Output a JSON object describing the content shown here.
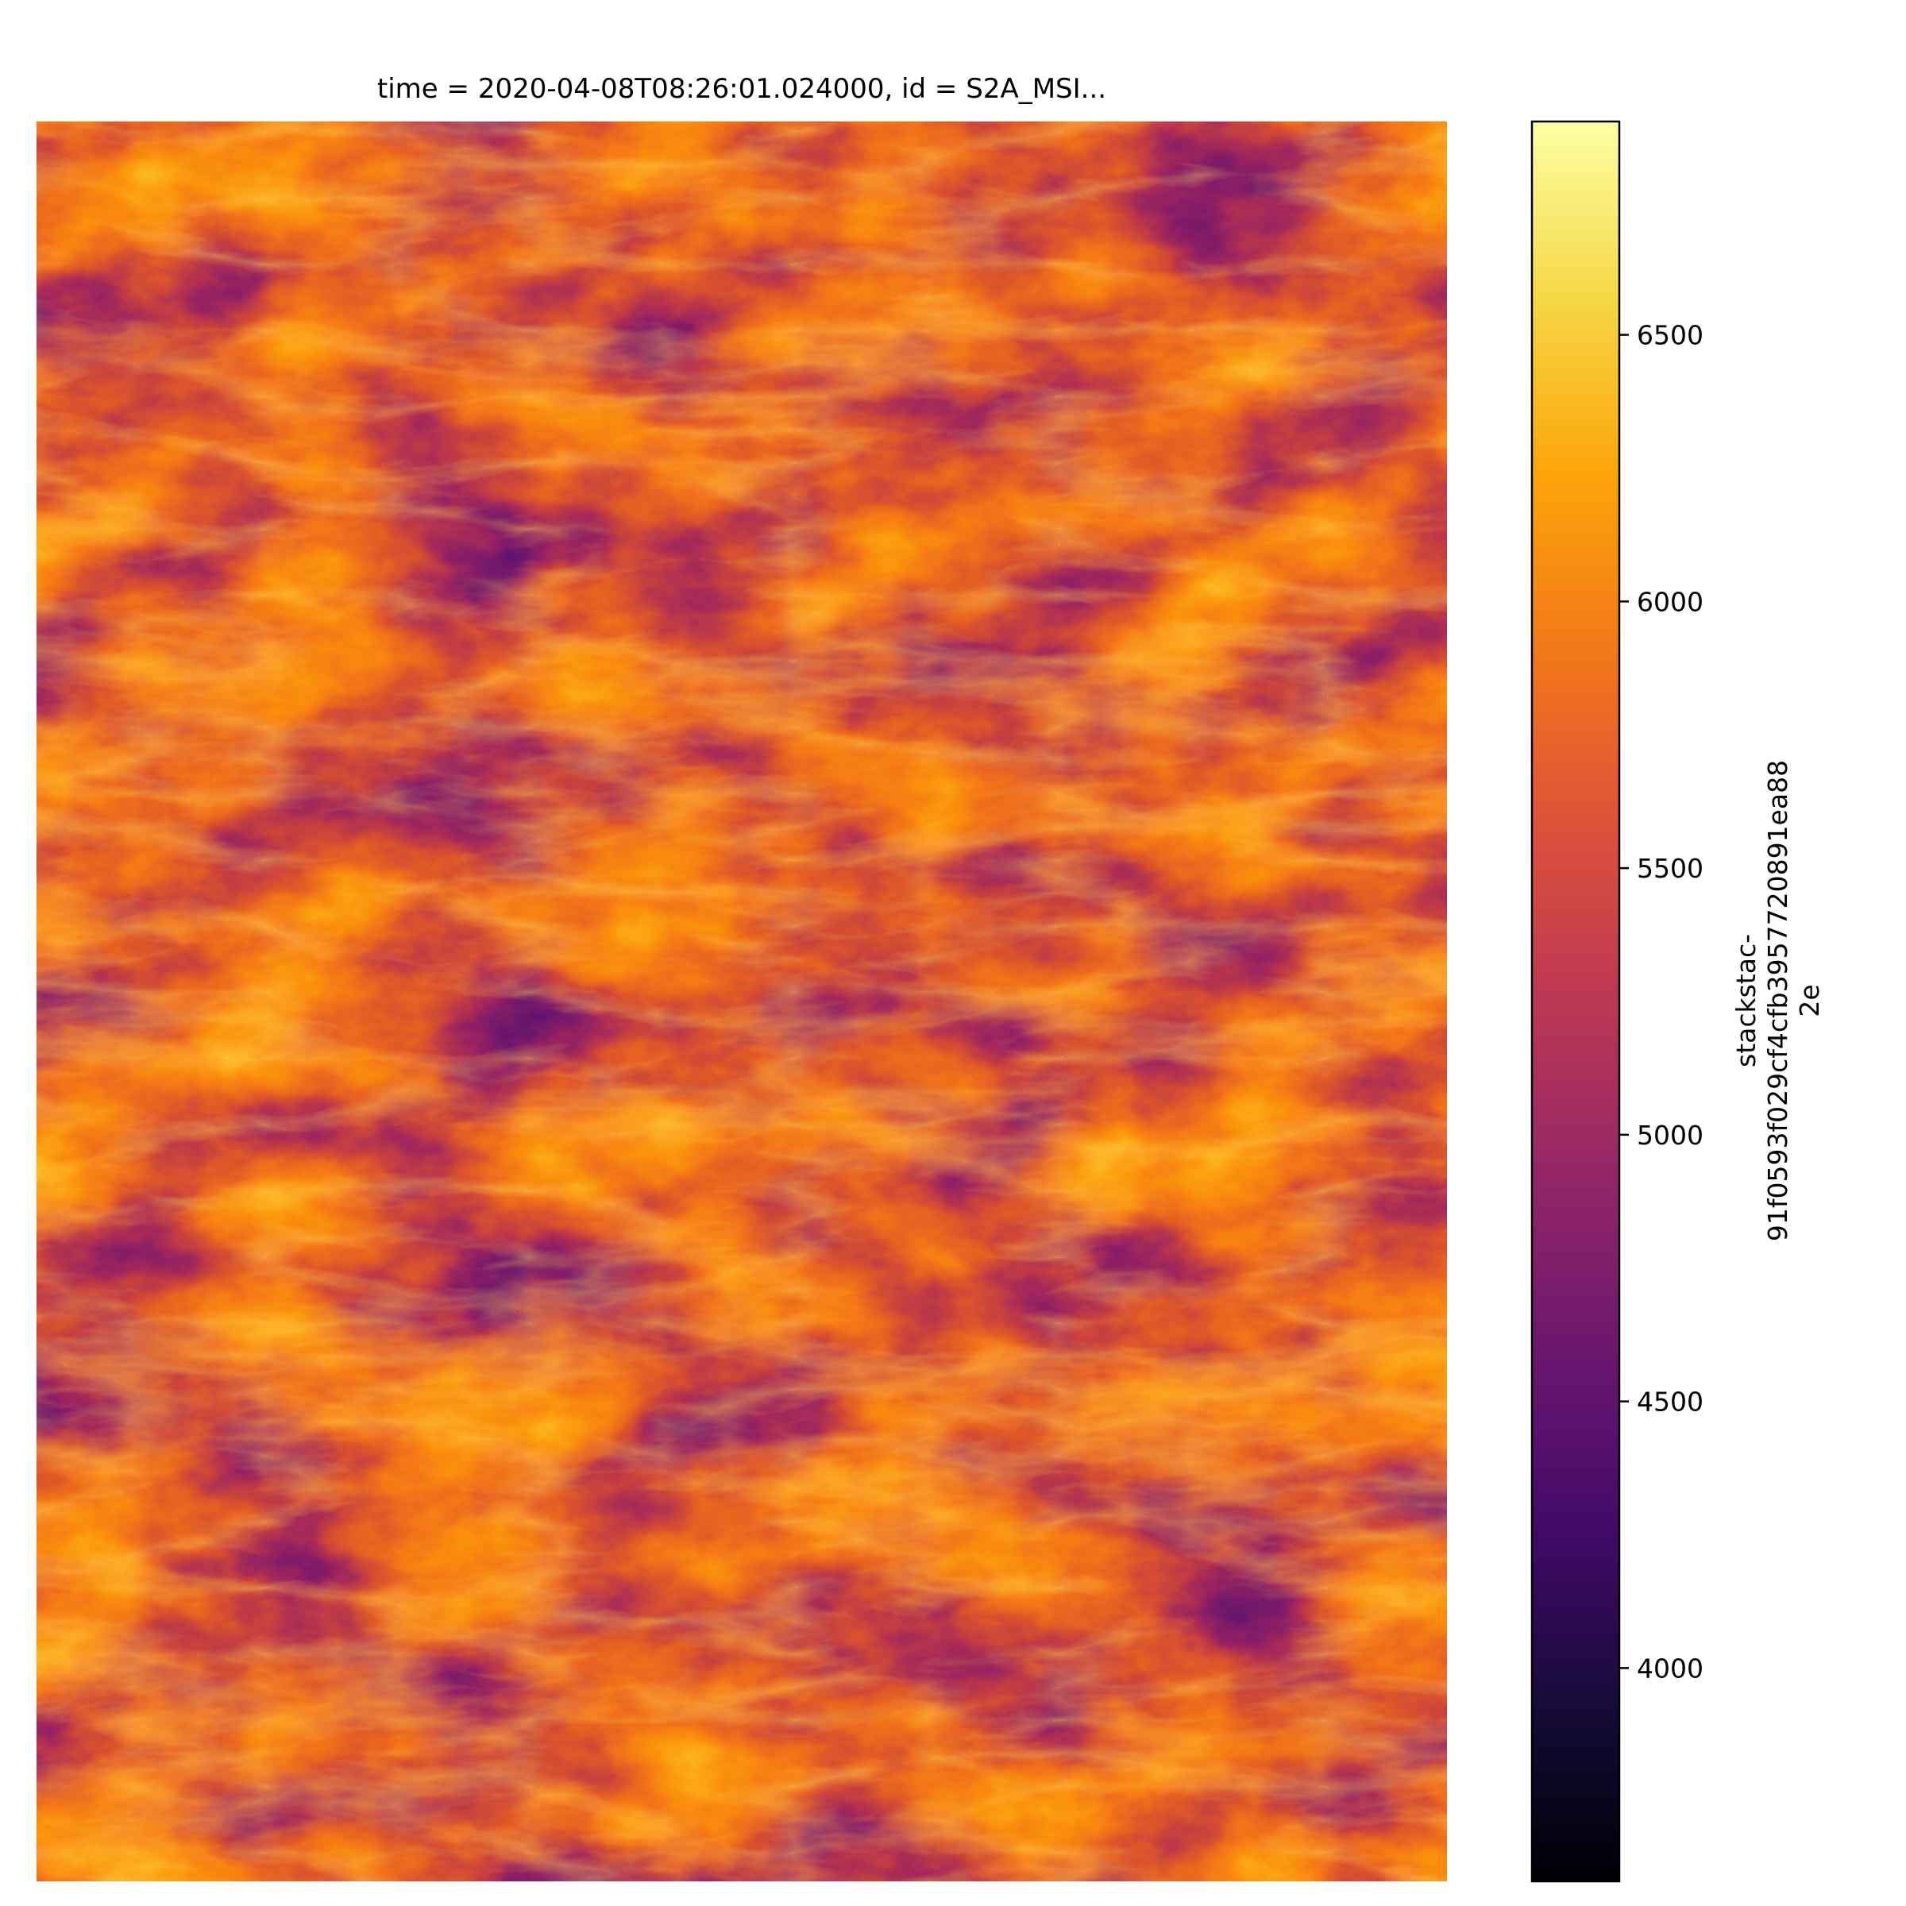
{
  "chart_data": {
    "type": "heatmap",
    "title": "time = 2020-04-08T08:26:01.024000, id = S2A_MSI...",
    "xlabel": "",
    "ylabel": "",
    "grid": false,
    "colormap": "inferno",
    "colorbar": {
      "label_lines": [
        "stackstac-",
        "91f0593f029cf4cfb3957720891ea88",
        "2e"
      ],
      "vmin": 3600,
      "vmax": 6900,
      "ticks": [
        4000,
        4500,
        5000,
        5500,
        6000,
        6500
      ],
      "tick_labels": [
        "4000",
        "4500",
        "5000",
        "5500",
        "6000",
        "6500"
      ]
    },
    "image": {
      "description_value_range": [
        3600,
        6900
      ],
      "dominant_colors": [
        "#6a1a6a",
        "#b53068",
        "#f07a1d",
        "#fbb32a",
        "#f6e27a"
      ]
    }
  }
}
